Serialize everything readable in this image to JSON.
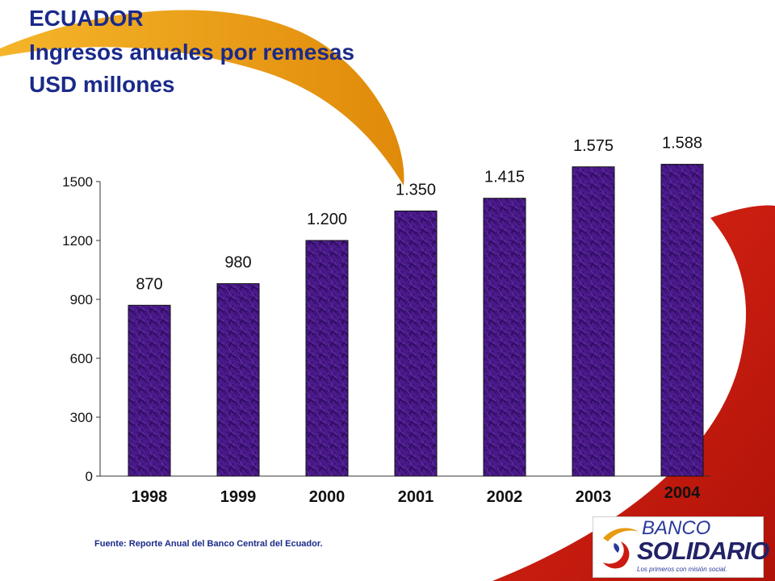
{
  "page": {
    "title": "ECUADOR",
    "subtitle": "Ingresos anuales por remesas",
    "unit_label": "USD millones",
    "source": "Fuente: Reporte Anual del Banco Central del Ecuador.",
    "logo": {
      "banco": "BANCO",
      "solidario": "SOLIDARIO",
      "tagline": "Los primeros con misión social."
    }
  },
  "colors": {
    "bar": "#4a1a8a",
    "bar_texture": "#2d0a5c",
    "title": "#1a2a8a",
    "swoosh_orange": "#e89a12",
    "swoosh_red": "#cc1a10"
  },
  "chart_data": {
    "type": "bar",
    "title": "Ingresos anuales por remesas",
    "ylabel": "USD millones",
    "xlabel": "",
    "categories": [
      "1998",
      "1999",
      "2000",
      "2001",
      "2002",
      "2003",
      "2004"
    ],
    "values": [
      870,
      980,
      1200,
      1350,
      1415,
      1575,
      1588
    ],
    "data_labels": [
      "870",
      "980",
      "1.200",
      "1.350",
      "1.415",
      "1.575",
      "1.588"
    ],
    "ylim": [
      0,
      1500
    ],
    "yticks": [
      0,
      300,
      600,
      900,
      1200,
      1500
    ],
    "ytick_labels": [
      "0",
      "300",
      "600",
      "900",
      "1200",
      "1500"
    ],
    "grid": false,
    "legend": "none"
  }
}
